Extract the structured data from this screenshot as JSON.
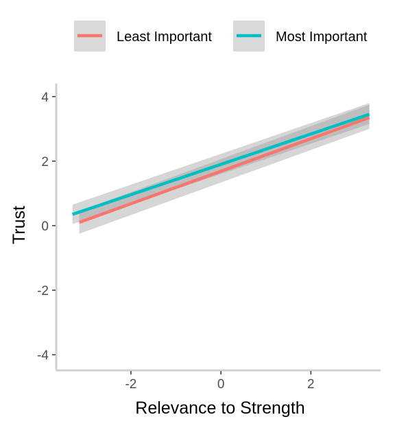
{
  "chart_data": {
    "type": "line",
    "title": "",
    "xlabel": "Relevance to Strength",
    "ylabel": "Trust",
    "xlim": [
      -3.6,
      3.55
    ],
    "ylim": [
      -4.4,
      4.4
    ],
    "x_ticks": [
      -2,
      0,
      2
    ],
    "y_ticks": [
      -4,
      -2,
      0,
      2,
      4
    ],
    "grid": false,
    "legend_position": "top",
    "series": [
      {
        "name": "Least Important",
        "color": "#F8766D",
        "x": [
          -3.15,
          3.3
        ],
        "y": [
          0.1,
          3.35
        ],
        "ci_lower": [
          -0.25,
          3.0
        ],
        "ci_upper": [
          0.45,
          3.75
        ]
      },
      {
        "name": "Most Important",
        "color": "#00BFC4",
        "x": [
          -3.3,
          3.3
        ],
        "y": [
          0.35,
          3.45
        ],
        "ci_lower": [
          0.05,
          3.15
        ],
        "ci_upper": [
          0.65,
          3.8
        ]
      }
    ]
  }
}
